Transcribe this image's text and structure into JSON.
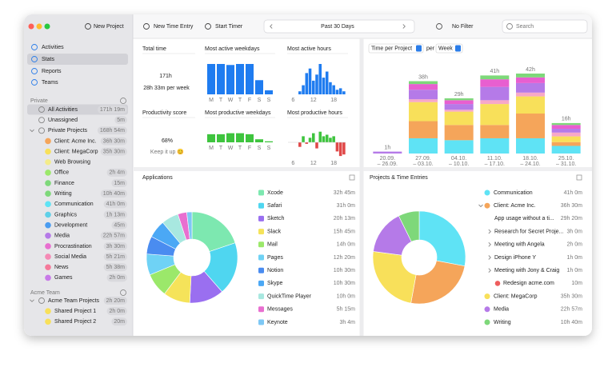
{
  "toolbar": {
    "new_project": "New Project",
    "new_time_entry": "New Time Entry",
    "start_timer": "Start Timer",
    "range": "Past 30 Days",
    "filter": "No Filter",
    "search": "Search"
  },
  "sidebar": {
    "nav": [
      "Activities",
      "Stats",
      "Reports",
      "Teams"
    ],
    "private_header": "Private",
    "private_items": [
      {
        "label": "All Activities",
        "time": "171h 19m"
      },
      {
        "label": "Unassigned",
        "time": "5m"
      },
      {
        "label": "Private Projects",
        "time": "168h 54m",
        "children": [
          {
            "label": "Client: Acme Inc.",
            "time": "36h 30m",
            "color": "#f5a55a"
          },
          {
            "label": "Client: MegaCorp",
            "time": "35h 30m",
            "color": "#f8e05a"
          },
          {
            "label": "Web Browsing",
            "color": "#f4ec8a"
          },
          {
            "label": "Office",
            "time": "2h 4m",
            "color": "#9be86a"
          },
          {
            "label": "Finance",
            "time": "15m",
            "color": "#7ed87a"
          },
          {
            "label": "Writing",
            "time": "10h 40m",
            "color": "#7ed87a"
          },
          {
            "label": "Communication",
            "time": "41h 0m",
            "color": "#5fe3f5"
          },
          {
            "label": "Graphics",
            "time": "1h 13m",
            "color": "#5fd0e8"
          },
          {
            "label": "Development",
            "time": "45m",
            "color": "#4a9cf0"
          },
          {
            "label": "Media",
            "time": "22h 57m",
            "color": "#b57ae8"
          },
          {
            "label": "Procrastination",
            "time": "3h 30m",
            "color": "#e86fd0"
          },
          {
            "label": "Social Media",
            "time": "5h 21m",
            "color": "#f58ab5"
          },
          {
            "label": "News",
            "time": "5h 38m",
            "color": "#f57a9a"
          },
          {
            "label": "Games",
            "time": "2h 0m",
            "color": "#c87ae8"
          }
        ]
      }
    ],
    "team_header": "Acme Team",
    "team_items": [
      {
        "label": "Acme Team Projects",
        "time": "2h 20m",
        "children": [
          {
            "label": "Shared Project 1",
            "time": "2h 0m",
            "color": "#f8e05a"
          },
          {
            "label": "Shared Project 2",
            "time": "20m",
            "color": "#f8e05a"
          }
        ]
      }
    ]
  },
  "stats": {
    "total_time": {
      "title": "Total time",
      "value": "171h",
      "caption": "28h 33m per week"
    },
    "active_weekdays": {
      "title": "Most active weekdays",
      "categories": [
        "M",
        "T",
        "W",
        "T",
        "F",
        "S",
        "S"
      ],
      "values": [
        30,
        30,
        29,
        30,
        30,
        14,
        4
      ],
      "color": "#1f7cf0"
    },
    "active_hours": {
      "title": "Most active hours",
      "x": [
        5,
        6,
        7,
        8,
        9,
        10,
        11,
        12,
        13,
        14,
        15,
        16,
        17,
        18,
        19,
        20,
        21
      ],
      "values": [
        0,
        0,
        0,
        2,
        6,
        14,
        17,
        9,
        13,
        20,
        11,
        15,
        8,
        6,
        3,
        4,
        2
      ],
      "xticks": [
        6,
        12,
        18
      ],
      "color": "#1f7cf0"
    },
    "productivity": {
      "title": "Productivity score",
      "score": {
        "value": 68,
        "label": "68%"
      },
      "caption": "Keep it up 😊",
      "color": "#2fb84a"
    },
    "productive_weekdays": {
      "title": "Most productive weekdays",
      "categories": [
        "M",
        "T",
        "W",
        "T",
        "F",
        "S",
        "S"
      ],
      "values": [
        8,
        8,
        9,
        9,
        8,
        3,
        1
      ],
      "color": "#3ec43e"
    },
    "productive_hours": {
      "title": "Most productive hours",
      "x": [
        5,
        6,
        7,
        8,
        9,
        10,
        11,
        12,
        13,
        14,
        15,
        16,
        17,
        18,
        19,
        20,
        21
      ],
      "values": [
        0,
        0,
        0,
        -3,
        4,
        -1,
        3,
        6,
        -4,
        7,
        4,
        5,
        3,
        4,
        -6,
        -9,
        -8
      ],
      "xticks": [
        6,
        12,
        18
      ],
      "color": "#3ec43e",
      "negative_color": "#e04848"
    },
    "time_per_project": {
      "title": "Time per Project",
      "per": "per",
      "unit": "Week",
      "categories": [
        [
          "20.09.",
          "– 26.09."
        ],
        [
          "27.09.",
          "– 03.10."
        ],
        [
          "04.10.",
          "– 10.10."
        ],
        [
          "11.10.",
          "– 17.10."
        ],
        [
          "18.10.",
          "– 24.10."
        ],
        [
          "25.10.",
          "– 31.10."
        ]
      ],
      "bar_labels": [
        "1h",
        "38h",
        "29h",
        "41h",
        "42h",
        "16h"
      ],
      "series": [
        {
          "color": "#5fe3f5",
          "values": [
            0,
            8,
            7,
            8,
            8,
            4
          ]
        },
        {
          "color": "#f5a55a",
          "values": [
            0,
            9,
            8,
            7,
            13,
            2
          ]
        },
        {
          "color": "#f8e05a",
          "values": [
            0,
            10,
            7,
            11,
            9,
            3
          ]
        },
        {
          "color": "#f7a8c8",
          "values": [
            0,
            1.5,
            1,
            2,
            2,
            2
          ]
        },
        {
          "color": "#b57ae8",
          "values": [
            1,
            5,
            3,
            7,
            5,
            2
          ]
        },
        {
          "color": "#e85fd0",
          "values": [
            0,
            3,
            2,
            4,
            3,
            2
          ]
        },
        {
          "color": "#7ed87a",
          "values": [
            0,
            1.5,
            1,
            2,
            2,
            1
          ]
        }
      ]
    }
  },
  "applications": {
    "title": "Applications",
    "items": [
      {
        "name": "Xcode",
        "time": "32h 45m",
        "value": 32.75,
        "color": "#7de8b0"
      },
      {
        "name": "Safari",
        "time": "31h 0m",
        "value": 31,
        "color": "#4fd6f0"
      },
      {
        "name": "Sketch",
        "time": "20h 13m",
        "value": 20.22,
        "color": "#9a6ff0"
      },
      {
        "name": "Slack",
        "time": "15h 45m",
        "value": 15.75,
        "color": "#f5e35a"
      },
      {
        "name": "Mail",
        "time": "14h 0m",
        "value": 14,
        "color": "#9be86a"
      },
      {
        "name": "Pages",
        "time": "12h 20m",
        "value": 12.33,
        "color": "#6fd2f5"
      },
      {
        "name": "Notion",
        "time": "10h 30m",
        "value": 10.5,
        "color": "#4a8cf0"
      },
      {
        "name": "Skype",
        "time": "10h 30m",
        "value": 10.5,
        "color": "#4ba8f5"
      },
      {
        "name": "QuickTime Player",
        "time": "10h 0m",
        "value": 10,
        "color": "#a8e8e0"
      },
      {
        "name": "Messages",
        "time": "5h 15m",
        "value": 5.25,
        "color": "#e86fd0"
      },
      {
        "name": "Keynote",
        "time": "3h 4m",
        "value": 3.07,
        "color": "#7ec8f5"
      }
    ]
  },
  "projects": {
    "title": "Projects & Time Entries",
    "items": [
      {
        "label": "Communication",
        "time": "41h 0m",
        "value": 41,
        "color": "#5fe3f5"
      },
      {
        "label": "Client: Acme Inc.",
        "time": "36h 30m",
        "value": 36.5,
        "color": "#f5a55a",
        "children": [
          {
            "label": "App usage without a ti...",
            "time": "29h 20m"
          },
          {
            "label": "Research for Secret Proje...",
            "time": "3h 0m"
          },
          {
            "label": "Meeting with Angela",
            "time": "2h 0m"
          },
          {
            "label": "Design iPhone Y",
            "time": "1h 0m"
          },
          {
            "label": "Meeting with Jony & Craig",
            "time": "1h 0m"
          },
          {
            "label": "Redesign acme.com",
            "time": "10m",
            "color": "#ee5d5d"
          }
        ]
      },
      {
        "label": "Client: MegaCorp",
        "time": "35h 30m",
        "value": 35.5,
        "color": "#f8e05a"
      },
      {
        "label": "Media",
        "time": "22h 57m",
        "value": 22.95,
        "color": "#b57ae8"
      },
      {
        "label": "Writing",
        "time": "10h 40m",
        "value": 10.67,
        "color": "#7ed87a"
      }
    ]
  }
}
